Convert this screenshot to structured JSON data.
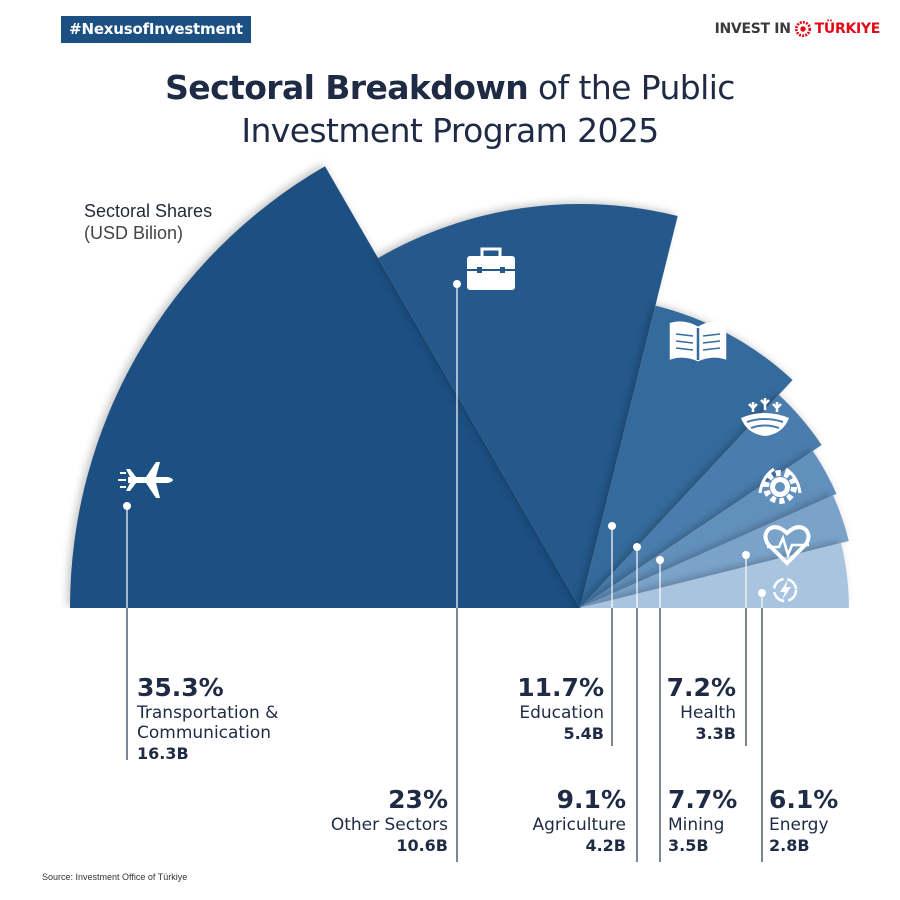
{
  "header": {
    "hashtag": "#NexusofInvestment",
    "brand_left": "INVEST IN",
    "brand_right": "TÜRKIYE"
  },
  "title": {
    "bold": "Sectoral Breakdown",
    "rest_line1": " of the Public",
    "line2": "Investment Program 2025"
  },
  "chart_data": {
    "type": "pie",
    "subtitle": "Sectoral Shares",
    "unit": "(USD Bilion)",
    "series": [
      {
        "name": "Transportation & Communication",
        "share_pct": 35.3,
        "value": 16.3,
        "pct_label": "35.3%",
        "value_label": "16.3B",
        "icon": "airplane-icon",
        "color": "#1c4f82"
      },
      {
        "name": "Other Sectors",
        "share_pct": 23,
        "value": 10.6,
        "pct_label": "23%",
        "value_label": "10.6B",
        "icon": "briefcase-icon",
        "color": "#25598b"
      },
      {
        "name": "Education",
        "share_pct": 11.7,
        "value": 5.4,
        "pct_label": "11.7%",
        "value_label": "5.4B",
        "icon": "book-icon",
        "color": "#356b9c"
      },
      {
        "name": "Agriculture",
        "share_pct": 9.1,
        "value": 4.2,
        "pct_label": "9.1%",
        "value_label": "4.2B",
        "icon": "agriculture-icon",
        "color": "#4a7dad"
      },
      {
        "name": "Mining",
        "share_pct": 7.7,
        "value": 3.5,
        "pct_label": "7.7%",
        "value_label": "3.5B",
        "icon": "gear-icon",
        "color": "#6290bd"
      },
      {
        "name": "Health",
        "share_pct": 7.2,
        "value": 3.3,
        "pct_label": "7.2%",
        "value_label": "3.3B",
        "icon": "heart-pulse-icon",
        "color": "#7ba3ca"
      },
      {
        "name": "Energy",
        "share_pct": 6.1,
        "value": 2.8,
        "pct_label": "6.1%",
        "value_label": "2.8B",
        "icon": "energy-icon",
        "color": "#a8c4df"
      }
    ],
    "labels": {
      "transport_name_line1": "Transportation &",
      "transport_name_line2": "Communication"
    }
  },
  "source": "Source: Investment Office of Türkiye"
}
